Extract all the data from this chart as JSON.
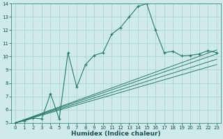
{
  "title": "",
  "xlabel": "Humidex (Indice chaleur)",
  "ylabel": "",
  "background_color": "#ceeaea",
  "grid_color": "#aed4d4",
  "line_color": "#2a7a6a",
  "xlim": [
    -0.5,
    23.5
  ],
  "ylim": [
    5,
    14
  ],
  "xtick_labels": [
    "0",
    "1",
    "2",
    "3",
    "4",
    "5",
    "6",
    "7",
    "8",
    "9",
    "10",
    "11",
    "12",
    "13",
    "14",
    "15",
    "16",
    "17",
    "18",
    "19",
    "20",
    "21",
    "22",
    "23"
  ],
  "xtick_vals": [
    0,
    1,
    2,
    3,
    4,
    5,
    6,
    7,
    8,
    9,
    10,
    11,
    12,
    13,
    14,
    15,
    16,
    17,
    18,
    19,
    20,
    21,
    22,
    23
  ],
  "ytick_vals": [
    5,
    6,
    7,
    8,
    9,
    10,
    11,
    12,
    13,
    14
  ],
  "main_line_x": [
    0,
    1,
    2,
    3,
    4,
    5,
    6,
    7,
    8,
    9,
    10,
    11,
    12,
    13,
    14,
    15,
    16,
    17,
    18,
    19,
    20,
    21,
    22,
    23
  ],
  "main_line_y": [
    5.0,
    5.15,
    5.35,
    5.3,
    7.2,
    5.3,
    10.3,
    7.7,
    9.4,
    10.1,
    10.3,
    11.7,
    12.2,
    13.0,
    13.8,
    14.0,
    12.0,
    10.3,
    10.4,
    10.05,
    10.1,
    10.2,
    10.45,
    10.3
  ],
  "ref_lines": [
    [
      5.0,
      10.5
    ],
    [
      5.0,
      10.2
    ],
    [
      5.0,
      9.8
    ],
    [
      5.0,
      9.4
    ]
  ]
}
